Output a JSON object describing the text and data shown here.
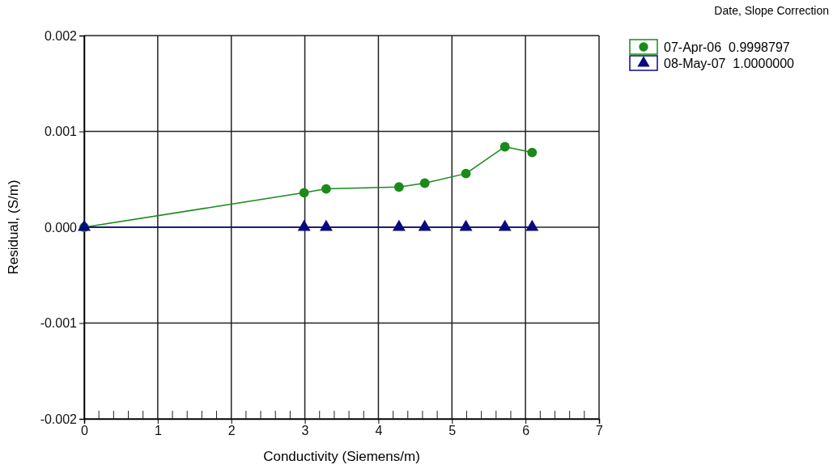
{
  "chart_data": {
    "type": "line",
    "xlabel": "Conductivity (Siemens/m)",
    "ylabel": "Residual, (S/m)",
    "legend_title": "Date, Slope Correction",
    "legend": "top right",
    "grid": true,
    "line_style": "solid",
    "xlim": [
      0,
      7
    ],
    "xticks": [
      0,
      1,
      2,
      3,
      4,
      5,
      6,
      7
    ],
    "ylim": [
      -0.002,
      0.002
    ],
    "yticks": [
      {
        "value": -0.002,
        "label": "-0.002"
      },
      {
        "value": -0.001,
        "label": "-0.001"
      },
      {
        "value": 0,
        "label": "0.000"
      },
      {
        "value": 0.001,
        "label": "0.001"
      },
      {
        "value": 0.002,
        "label": "0.002"
      }
    ],
    "series": [
      {
        "name": "07-Apr-06  0.9998797",
        "color": "#1a8a1a",
        "marker": "circle",
        "x": [
          0,
          2.99,
          3.29,
          4.28,
          4.63,
          5.19,
          5.72,
          6.09
        ],
        "values": [
          0,
          0.00036,
          0.0004,
          0.00042,
          0.00046,
          0.00056,
          0.00084,
          0.00078
        ]
      },
      {
        "name": "08-May-07  1.0000000",
        "color": "#0a0a80",
        "marker": "triangle",
        "x": [
          0,
          2.99,
          3.29,
          4.28,
          4.63,
          5.19,
          5.72,
          6.09
        ],
        "values": [
          0,
          0,
          0,
          0,
          0,
          0,
          0,
          0
        ]
      }
    ]
  }
}
